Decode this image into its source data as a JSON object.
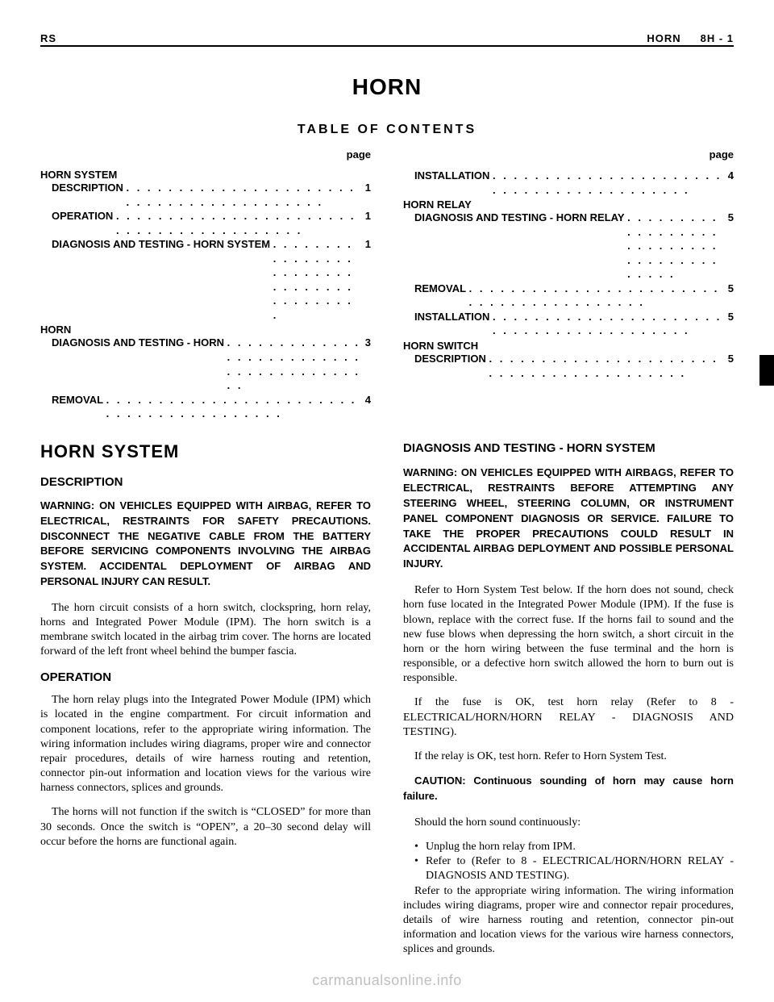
{
  "header": {
    "left": "RS",
    "right_label": "HORN",
    "right_page": "8H - 1"
  },
  "title": "HORN",
  "toc_title": "TABLE OF CONTENTS",
  "page_label": "page",
  "toc_left": [
    {
      "section": "HORN SYSTEM"
    },
    {
      "label": "DESCRIPTION",
      "page": "1"
    },
    {
      "label": "OPERATION",
      "page": "1"
    },
    {
      "label": "DIAGNOSIS AND TESTING - HORN SYSTEM",
      "page": "1"
    },
    {
      "section": "HORN"
    },
    {
      "label": "DIAGNOSIS AND TESTING - HORN",
      "page": "3"
    },
    {
      "label": "REMOVAL",
      "page": "4"
    }
  ],
  "toc_right": [
    {
      "label": "INSTALLATION",
      "page": "4"
    },
    {
      "section": "HORN RELAY"
    },
    {
      "label": "DIAGNOSIS AND TESTING - HORN RELAY",
      "page": "5"
    },
    {
      "label": "REMOVAL",
      "page": "5"
    },
    {
      "label": "INSTALLATION",
      "page": "5"
    },
    {
      "section": "HORN SWITCH"
    },
    {
      "label": "DESCRIPTION",
      "page": "5"
    }
  ],
  "left": {
    "h1": "HORN SYSTEM",
    "h2a": "DESCRIPTION",
    "warn": "WARNING: ON VEHICLES EQUIPPED WITH AIRBAG, REFER TO ELECTRICAL, RESTRAINTS FOR SAFETY PRECAUTIONS. DISCONNECT THE NEGATIVE CABLE FROM THE BATTERY BEFORE SERVICING COMPONENTS INVOLVING THE AIRBAG SYSTEM. ACCIDENTAL DEPLOYMENT OF AIRBAG AND PERSONAL INJURY CAN RESULT.",
    "p1": "The horn circuit consists of a horn switch, clockspring, horn relay, horns and Integrated Power Module (IPM). The horn switch is a membrane switch located in the airbag trim cover. The horns are located forward of the left front wheel behind the bumper fascia.",
    "h2b": "OPERATION",
    "p2": "The horn relay plugs into the Integrated Power Module (IPM) which is located in the engine compartment. For circuit information and component locations, refer to the appropriate wiring information. The wiring information includes wiring diagrams, proper wire and connector repair procedures, details of wire harness routing and retention, connector pin-out information and location views for the various wire harness connectors, splices and grounds.",
    "p3": "The horns will not function if the switch is “CLOSED” for more than 30 seconds. Once the switch is “OPEN”, a 20–30 second delay will occur before the horns are functional again."
  },
  "right": {
    "h2": "DIAGNOSIS AND TESTING - HORN SYSTEM",
    "warn": "WARNING: ON VEHICLES EQUIPPED WITH AIRBAGS, REFER TO ELECTRICAL, RESTRAINTS BEFORE ATTEMPTING ANY STEERING WHEEL, STEERING COLUMN, OR INSTRUMENT PANEL COMPONENT DIAGNOSIS OR SERVICE. FAILURE TO TAKE THE PROPER PRECAUTIONS COULD RESULT IN ACCIDENTAL AIRBAG DEPLOYMENT AND POSSIBLE PERSONAL INJURY.",
    "p1": "Refer to Horn System Test below. If the horn does not sound, check horn fuse located in the Integrated Power Module (IPM). If the fuse is blown, replace with the correct fuse. If the horns fail to sound and the new fuse blows when depressing the horn switch, a short circuit in the horn or the horn wiring between the fuse terminal and the horn is responsible, or a defective horn switch allowed the horn to burn out is responsible.",
    "p2": "If the fuse is OK, test horn relay (Refer to 8 - ELECTRICAL/HORN/HORN RELAY - DIAGNOSIS AND TESTING).",
    "p3": "If the relay is OK, test horn. Refer to Horn System Test.",
    "caution": "CAUTION: Continuous sounding of horn may cause horn failure.",
    "p4": "Should the horn sound continuously:",
    "b1": "Unplug the horn relay from IPM.",
    "b2": "Refer to (Refer to 8 - ELECTRICAL/HORN/HORN RELAY - DIAGNOSIS AND TESTING).",
    "p5": "Refer to the appropriate wiring information. The wiring information includes wiring diagrams, proper wire and connector repair procedures, details of wire harness routing and retention, connector pin-out information and location views for the various wire harness connectors, splices and grounds."
  },
  "footer": "carmanualsonline.info"
}
